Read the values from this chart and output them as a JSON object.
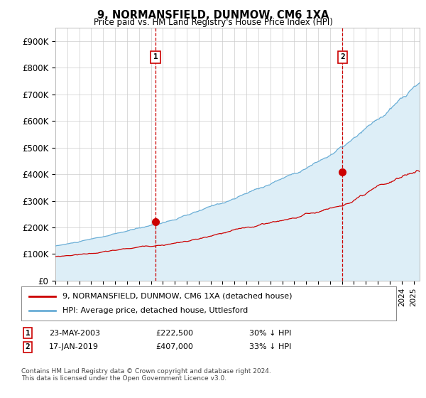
{
  "title": "9, NORMANSFIELD, DUNMOW, CM6 1XA",
  "subtitle": "Price paid vs. HM Land Registry's House Price Index (HPI)",
  "ylim": [
    0,
    950000
  ],
  "yticks": [
    0,
    100000,
    200000,
    300000,
    400000,
    500000,
    600000,
    700000,
    800000,
    900000
  ],
  "ytick_labels": [
    "£0",
    "£100K",
    "£200K",
    "£300K",
    "£400K",
    "£500K",
    "£600K",
    "£700K",
    "£800K",
    "£900K"
  ],
  "sale1_date": 2003.38,
  "sale1_price": 222500,
  "sale1_label": "1",
  "sale2_date": 2019.04,
  "sale2_price": 407000,
  "sale2_label": "2",
  "hpi_color": "#6aaed6",
  "hpi_fill_color": "#ddeef7",
  "price_color": "#cc0000",
  "marker_color": "#cc0000",
  "dashed_line_color": "#cc0000",
  "background_color": "#ffffff",
  "grid_color": "#cccccc",
  "legend1_label": "9, NORMANSFIELD, DUNMOW, CM6 1XA (detached house)",
  "legend2_label": "HPI: Average price, detached house, Uttlesford",
  "footnote": "Contains HM Land Registry data © Crown copyright and database right 2024.\nThis data is licensed under the Open Government Licence v3.0.",
  "xmin": 1995.0,
  "xmax": 2025.5,
  "hpi_seed": 10,
  "price_seed": 20
}
